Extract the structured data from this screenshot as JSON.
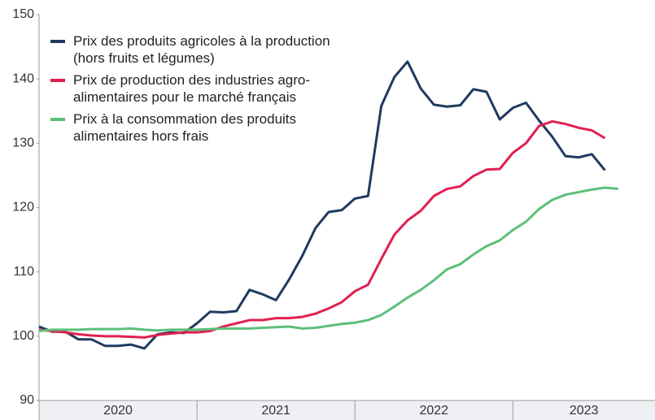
{
  "chart_data": {
    "type": "line",
    "x": [
      2020,
      2020.083,
      2020.167,
      2020.25,
      2020.333,
      2020.417,
      2020.5,
      2020.583,
      2020.667,
      2020.75,
      2020.833,
      2020.917,
      2021,
      2021.083,
      2021.167,
      2021.25,
      2021.333,
      2021.417,
      2021.5,
      2021.583,
      2021.667,
      2021.75,
      2021.833,
      2021.917,
      2022,
      2022.083,
      2022.167,
      2022.25,
      2022.333,
      2022.417,
      2022.5,
      2022.583,
      2022.667,
      2022.75,
      2022.833,
      2022.917,
      2023,
      2023.083,
      2023.167,
      2023.25,
      2023.333,
      2023.417,
      2023.5,
      2023.583,
      2023.667
    ],
    "series": [
      {
        "name": "Prix des produits agricoles à la production (hors fruits et légumes)",
        "color": "#1f3a5f",
        "values": [
          101.5,
          100.7,
          100.7,
          99.5,
          99.5,
          98.5,
          98.5,
          98.7,
          98.1,
          100.3,
          100.6,
          100.5,
          102.0,
          103.8,
          103.7,
          103.9,
          107.2,
          106.5,
          105.6,
          108.8,
          112.5,
          116.8,
          119.3,
          119.6,
          121.4,
          121.8,
          135.8,
          140.3,
          142.7,
          138.5,
          136.0,
          135.7,
          135.9,
          138.4,
          138.0,
          133.7,
          135.5,
          136.3,
          133.5,
          131.0,
          128.0,
          127.8,
          128.3,
          125.8,
          null
        ]
      },
      {
        "name": "Prix de production des industries agro-alimentaires pour le marché français",
        "color": "#e0204f",
        "values": [
          101.0,
          100.8,
          100.6,
          100.3,
          100.1,
          100.0,
          100.0,
          99.9,
          99.8,
          100.2,
          100.4,
          100.6,
          100.6,
          100.8,
          101.5,
          102.0,
          102.5,
          102.5,
          102.8,
          102.8,
          103.0,
          103.5,
          104.3,
          105.3,
          107.0,
          108.0,
          112.0,
          115.8,
          118.0,
          119.5,
          121.8,
          122.9,
          123.3,
          124.9,
          125.9,
          126.0,
          128.5,
          130.0,
          132.7,
          133.4,
          133.0,
          132.4,
          132.0,
          130.8,
          null
        ]
      },
      {
        "name": "Prix à la consommation des produits alimentaires hors frais",
        "color": "#5cbf7a",
        "values": [
          100.8,
          101.0,
          101.0,
          101.0,
          101.1,
          101.1,
          101.1,
          101.2,
          101.0,
          100.9,
          101.0,
          101.0,
          101.0,
          101.1,
          101.2,
          101.2,
          101.2,
          101.3,
          101.4,
          101.5,
          101.2,
          101.3,
          101.6,
          101.9,
          102.1,
          102.5,
          103.3,
          104.6,
          106.0,
          107.2,
          108.7,
          110.4,
          111.2,
          112.7,
          114.0,
          114.9,
          116.5,
          117.8,
          119.8,
          121.2,
          122.0,
          122.4,
          122.8,
          123.1,
          122.9
        ]
      }
    ],
    "xlim": [
      2020,
      2023.9
    ],
    "xticks": [
      2021,
      2022,
      2023
    ],
    "x_labels": [
      "2020",
      "2021",
      "2022",
      "2023"
    ],
    "ylim": [
      90,
      150
    ],
    "yticks": [
      90,
      100,
      110,
      120,
      130,
      140,
      150
    ],
    "grid": false,
    "legend": "top-left"
  }
}
